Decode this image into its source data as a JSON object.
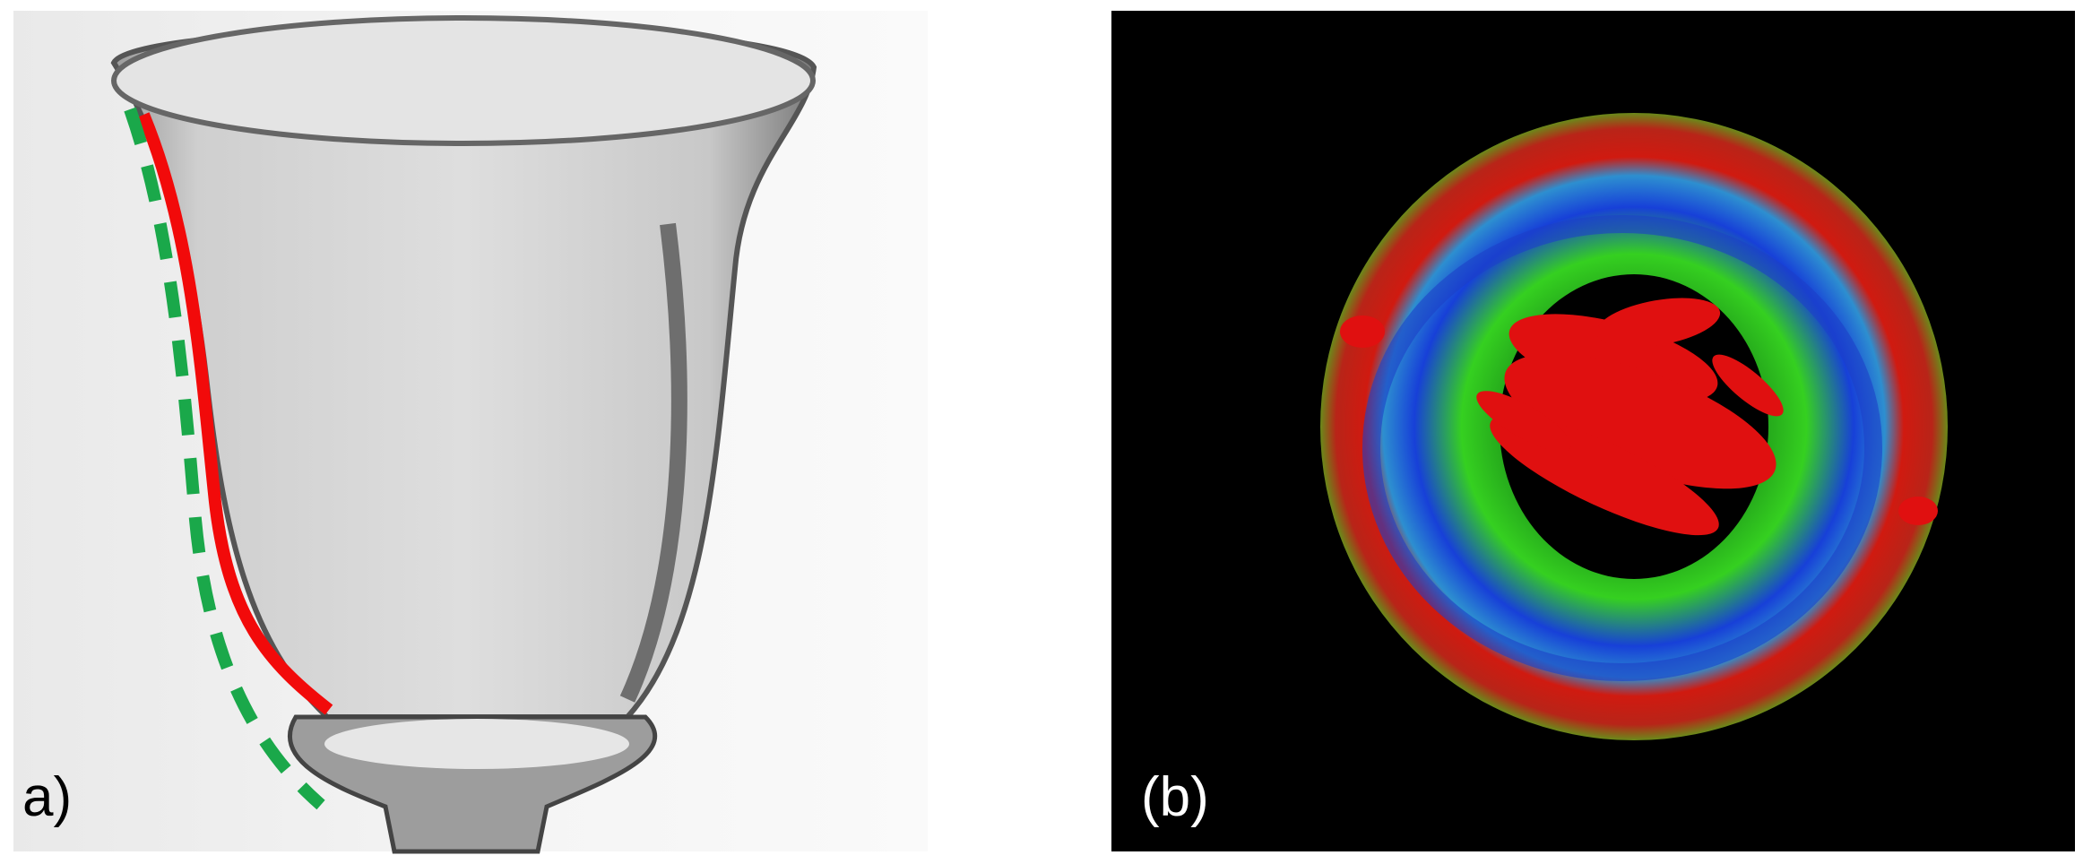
{
  "panels": [
    {
      "label": "a)"
    },
    {
      "label": "(b)"
    }
  ]
}
